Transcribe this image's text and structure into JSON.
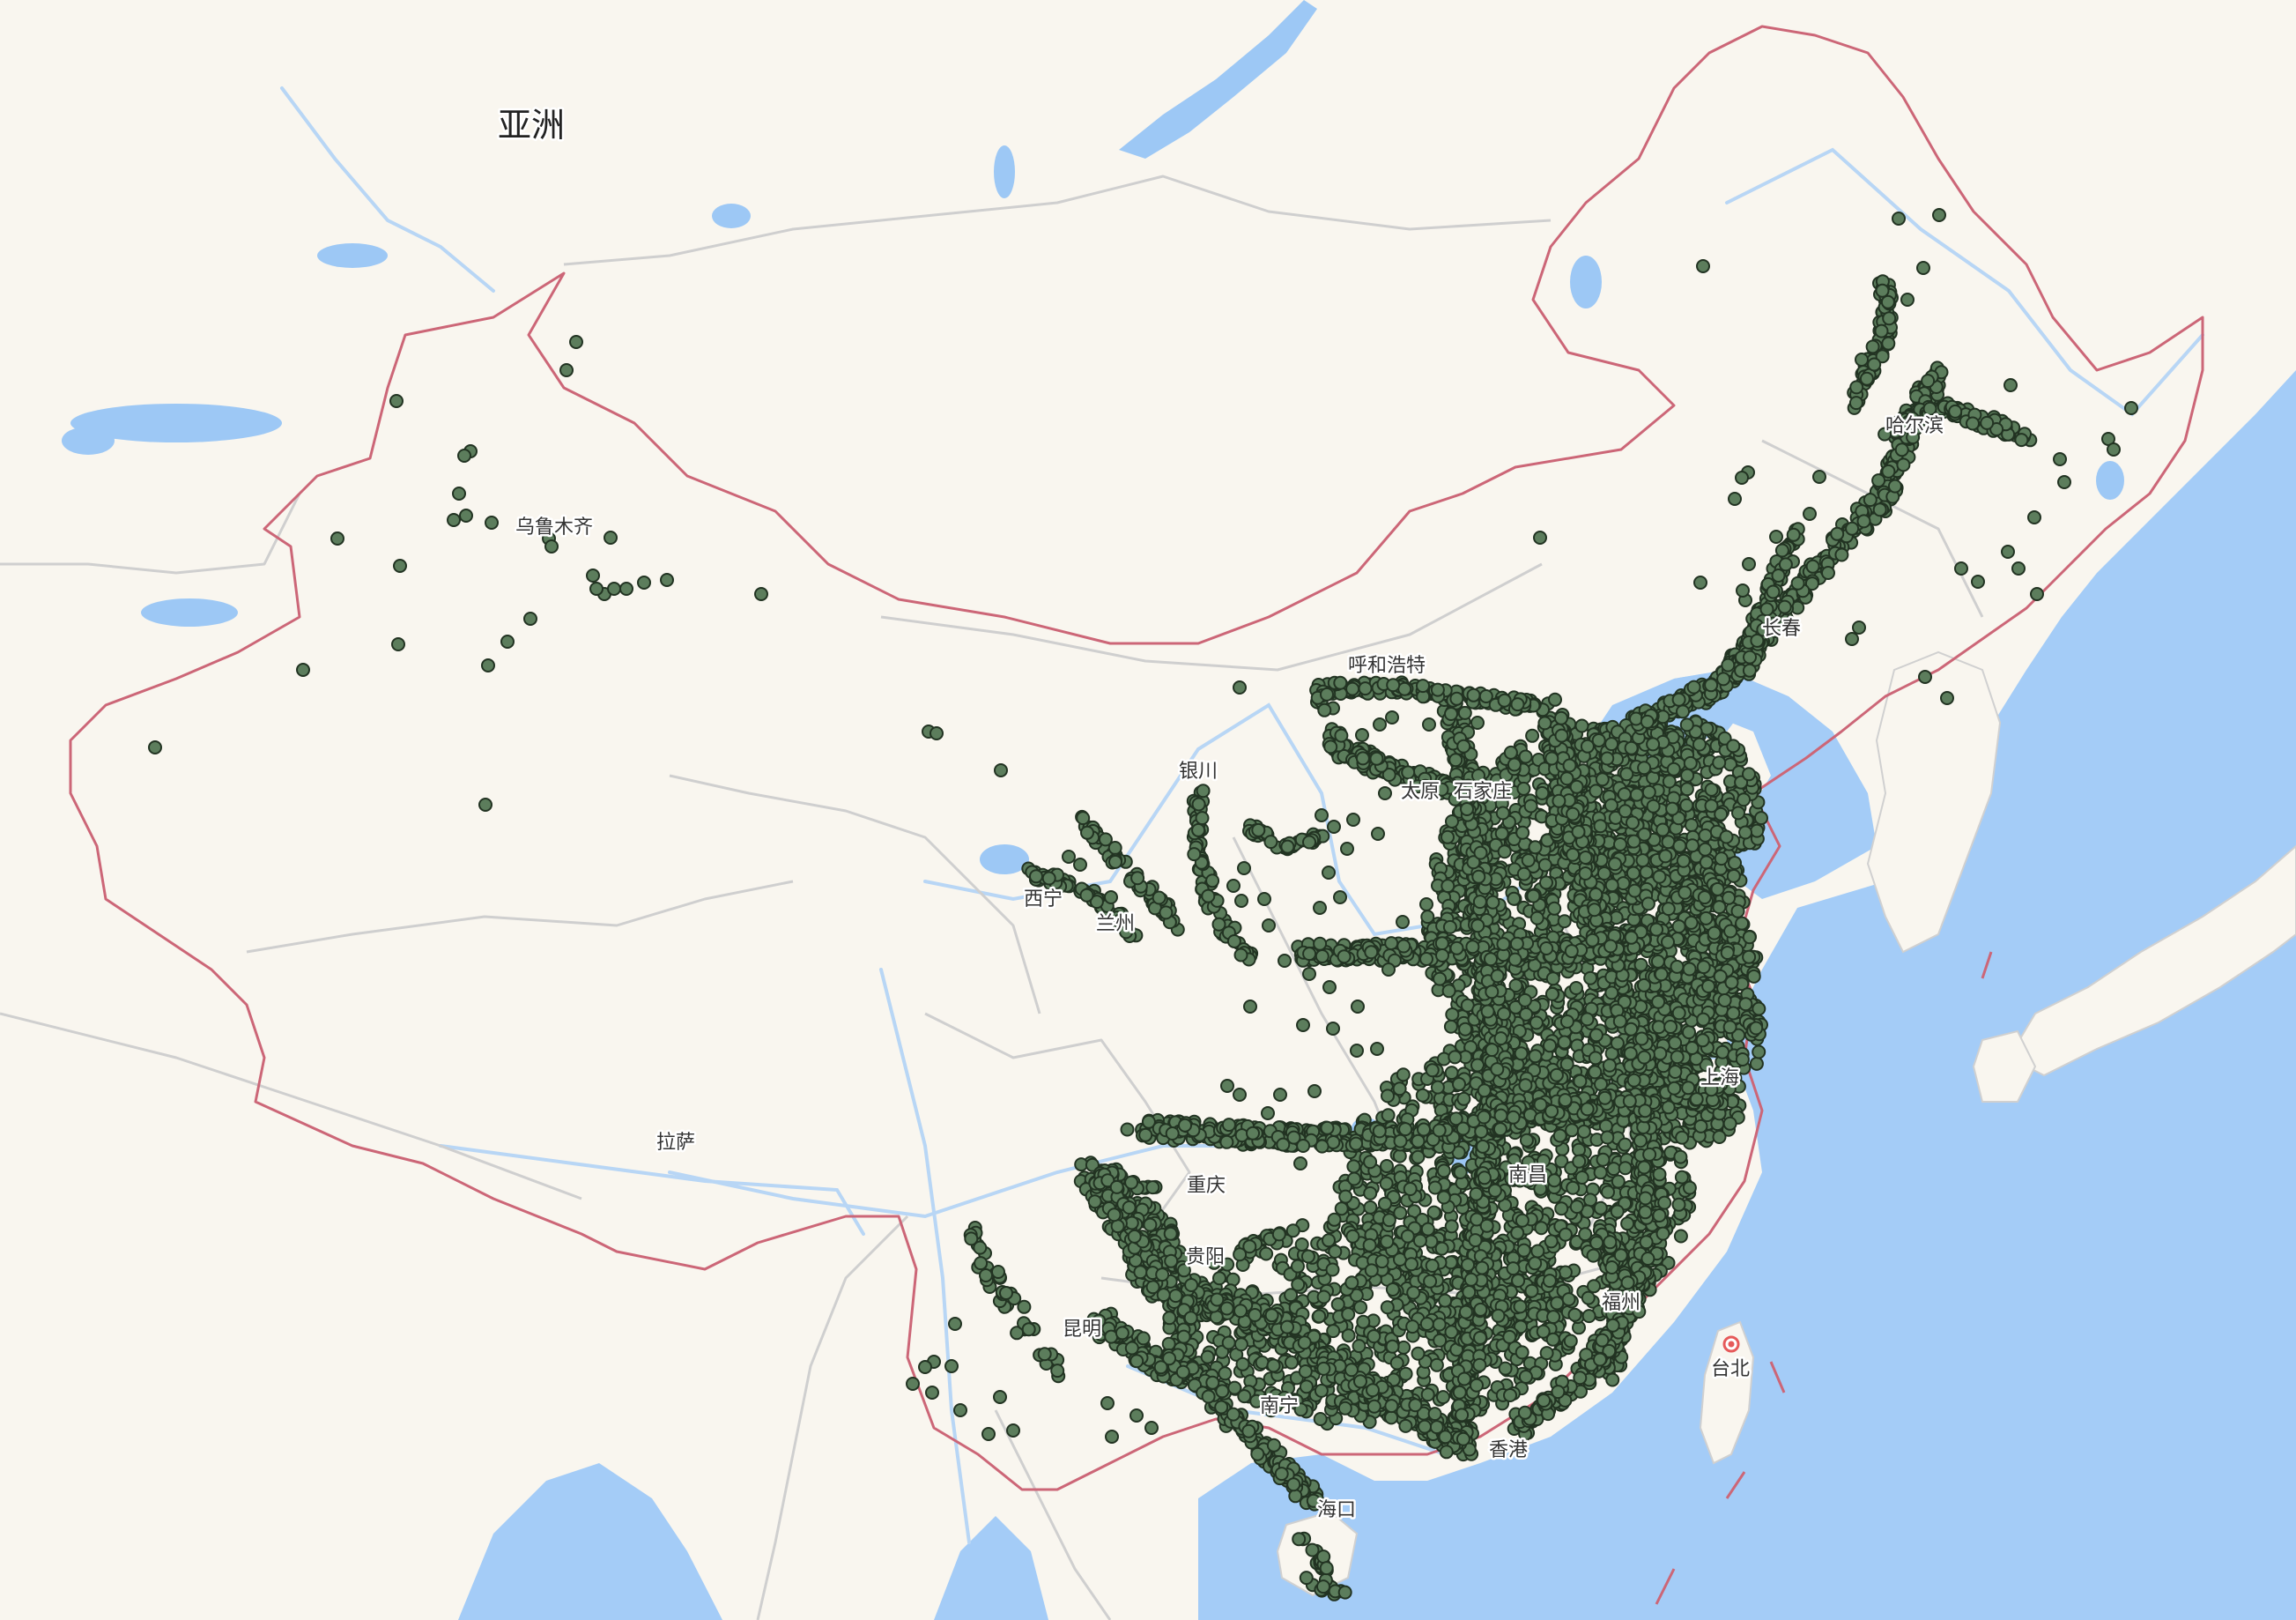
{
  "map": {
    "continent_label": "亚洲",
    "colors": {
      "land": "#f9f6ef",
      "sea": "#a4ccf7",
      "lake": "#9dc8f5",
      "river": "#b8d6f5",
      "national_border": "#cc6677",
      "province_border": "#cfcfcf",
      "point_fill": "#5c7d5c",
      "point_stroke": "#223322"
    },
    "city_labels": [
      {
        "name": "乌鲁木齐"
      },
      {
        "name": "呼和浩特"
      },
      {
        "name": "银川"
      },
      {
        "name": "西宁"
      },
      {
        "name": "兰州"
      },
      {
        "name": "拉萨"
      },
      {
        "name": "昆明"
      },
      {
        "name": "南宁"
      },
      {
        "name": "香港"
      },
      {
        "name": "海口"
      },
      {
        "name": "台北"
      },
      {
        "name": "福州"
      },
      {
        "name": "南昌"
      },
      {
        "name": "上海"
      },
      {
        "name": "贵阳"
      },
      {
        "name": "重庆"
      },
      {
        "name": "太原"
      },
      {
        "name": "石家庄"
      },
      {
        "name": "长春"
      },
      {
        "name": "哈尔滨"
      }
    ]
  }
}
